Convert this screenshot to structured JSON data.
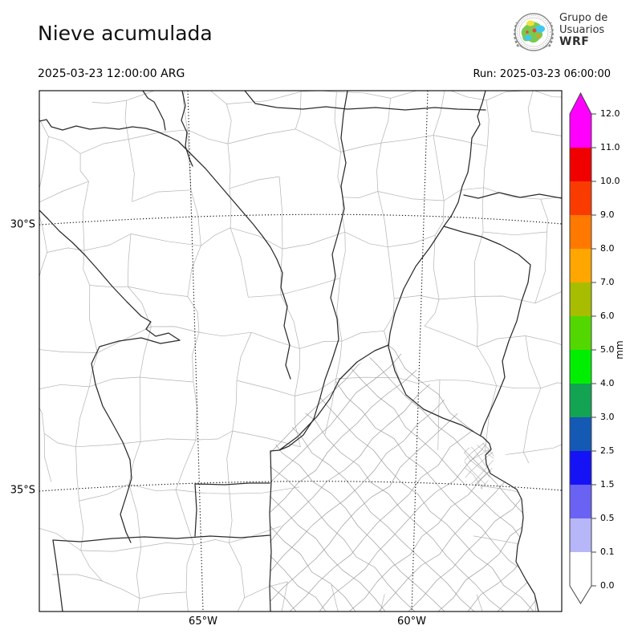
{
  "header": {
    "title": "Nieve acumulada",
    "valid_time": "2025-03-23 12:00:00 ARG",
    "run_time": "Run: 2025-03-23 06:00:00",
    "logo": {
      "line1": "Grupo de",
      "line2": "Usuarios",
      "line3": "WRF"
    }
  },
  "map": {
    "lat_labels": [
      "30°S",
      "35°S"
    ],
    "lon_labels": [
      "65°W",
      "60°W"
    ]
  },
  "colorbar": {
    "unit": "mm",
    "tick_labels": [
      "0.0",
      "0.1",
      "0.5",
      "1.5",
      "2.5",
      "3.0",
      "4.0",
      "5.0",
      "6.0",
      "7.0",
      "8.0",
      "9.0",
      "10.0",
      "11.0",
      "12.0"
    ],
    "segments": [
      {
        "from": 0.0,
        "to": 0.1,
        "color": "#ffffff"
      },
      {
        "from": 0.1,
        "to": 0.5,
        "color": "#b6b6f8"
      },
      {
        "from": 0.5,
        "to": 1.5,
        "color": "#6a62f2"
      },
      {
        "from": 1.5,
        "to": 2.5,
        "color": "#1612f6"
      },
      {
        "from": 2.5,
        "to": 3.0,
        "color": "#1459b4"
      },
      {
        "from": 3.0,
        "to": 4.0,
        "color": "#12a353"
      },
      {
        "from": 4.0,
        "to": 5.0,
        "color": "#00ef00"
      },
      {
        "from": 5.0,
        "to": 6.0,
        "color": "#52d800"
      },
      {
        "from": 6.0,
        "to": 7.0,
        "color": "#a6bd00"
      },
      {
        "from": 7.0,
        "to": 8.0,
        "color": "#ffa600"
      },
      {
        "from": 8.0,
        "to": 9.0,
        "color": "#ff7900"
      },
      {
        "from": 9.0,
        "to": 10.0,
        "color": "#fa3b00"
      },
      {
        "from": 10.0,
        "to": 11.0,
        "color": "#f10000"
      },
      {
        "from": 11.0,
        "to": 12.0,
        "color": "#ff00ff"
      }
    ],
    "over_arrow_color": "#ff00ff",
    "under_arrow_color": "#ffffff"
  }
}
